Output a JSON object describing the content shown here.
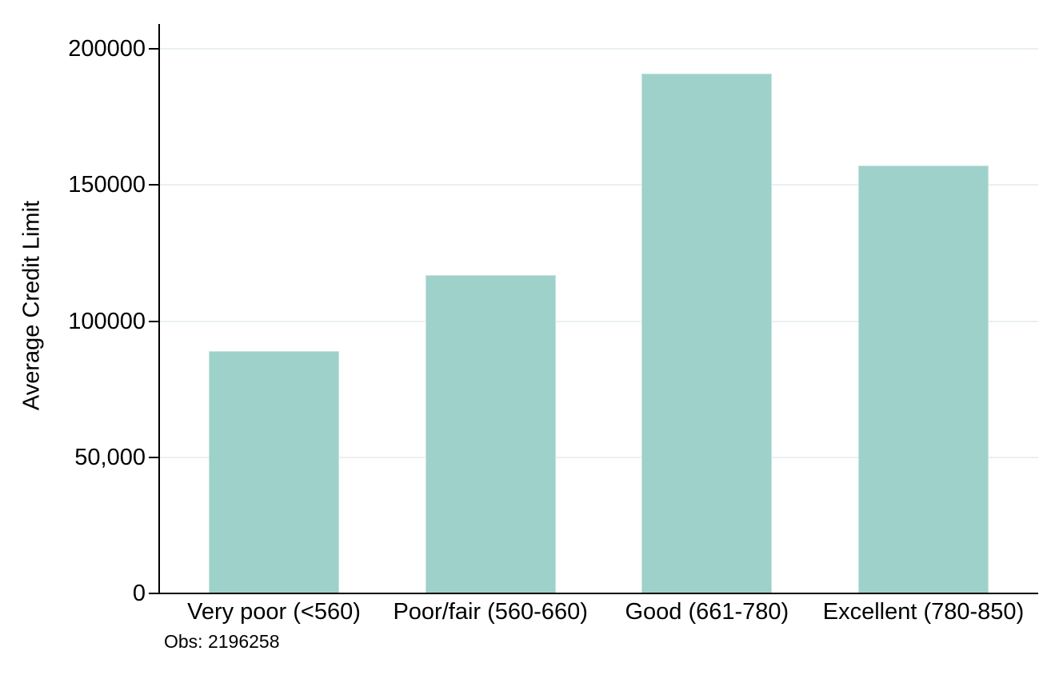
{
  "chart_data": {
    "type": "bar",
    "title": "",
    "ylabel": "Average Credit Limit",
    "xlabel": "",
    "categories": [
      "Very poor (<560)",
      "Poor/fair (560-660)",
      "Good (661-780)",
      "Excellent (780-850)"
    ],
    "values": [
      89000,
      117000,
      191000,
      157000
    ],
    "ylim": [
      0,
      200000
    ],
    "yticks": [
      {
        "value": 0,
        "label": "0"
      },
      {
        "value": 50000,
        "label": "50,000"
      },
      {
        "value": 100000,
        "label": "100000"
      },
      {
        "value": 150000,
        "label": "150000"
      },
      {
        "value": 200000,
        "label": "200000"
      }
    ],
    "grid": "horizontal",
    "legend": "none",
    "note": "Obs: 2196258",
    "colors": {
      "bar_fill": "#9ed1ca",
      "bar_border": "#c6e3de",
      "gridline": "#e9f0f3",
      "axis": "#000000",
      "text": "#000000",
      "background": "#ffffff"
    }
  }
}
